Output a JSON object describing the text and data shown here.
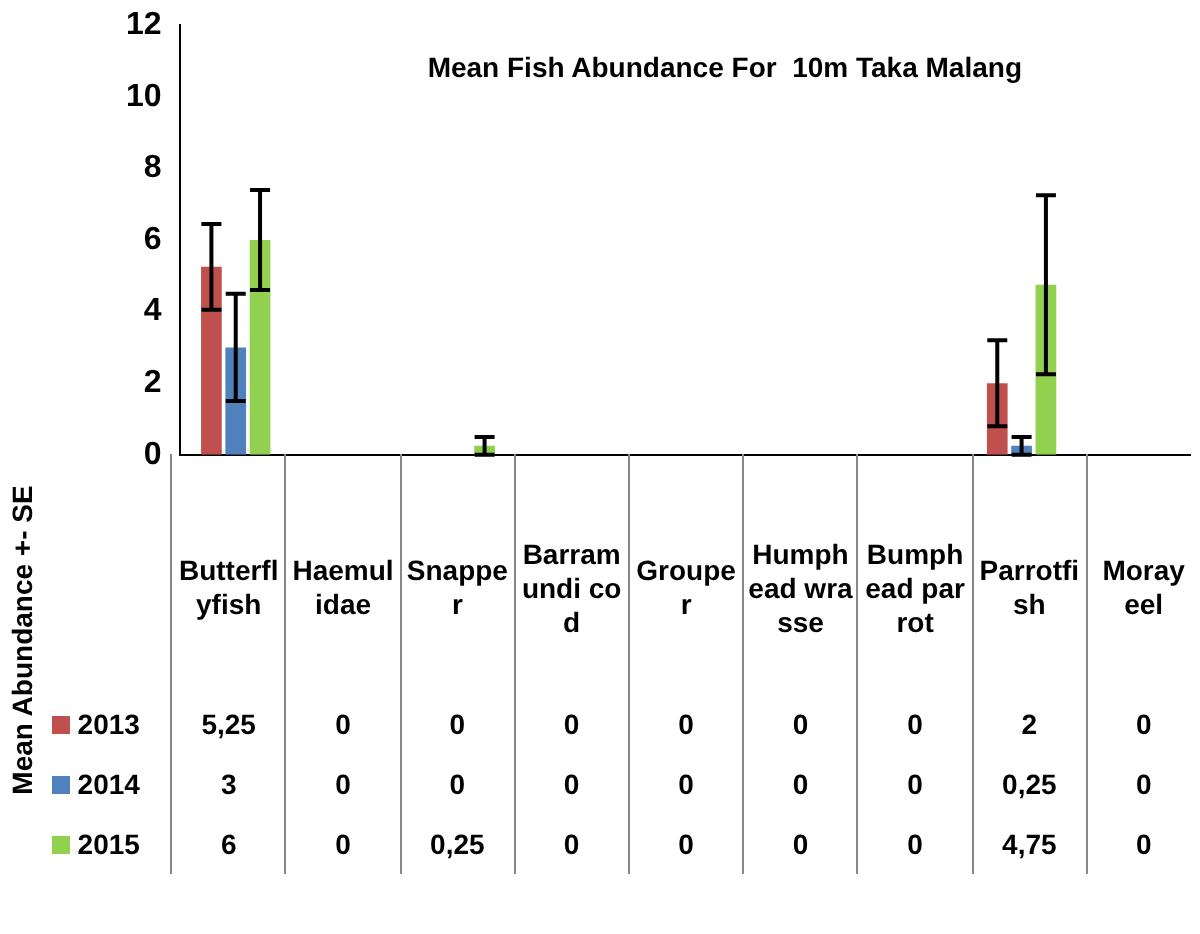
{
  "chart_data": {
    "type": "bar",
    "title": "Mean Fish Abundance For  10m Taka Malang",
    "ylabel": "Mean Abundance +- SE",
    "categories": [
      "Butterflyfish",
      "Haemulidae",
      "Snapper",
      "Barramundi cod",
      "Grouper",
      "Humphead wrasse",
      "Bumphead parrot",
      "Parrotfish",
      "Moray eel"
    ],
    "series": [
      {
        "name": "2013",
        "color": "#c0504d",
        "values": [
          5.25,
          0,
          0,
          0,
          0,
          0,
          0,
          2,
          0
        ],
        "value_labels": [
          "5,25",
          "0",
          "0",
          "0",
          "0",
          "0",
          "0",
          "2",
          "0"
        ],
        "errors": [
          1.2,
          null,
          null,
          null,
          null,
          null,
          null,
          1.2,
          null
        ]
      },
      {
        "name": "2014",
        "color": "#4f81bd",
        "values": [
          3,
          0,
          0,
          0,
          0,
          0,
          0,
          0.25,
          0
        ],
        "value_labels": [
          "3",
          "0",
          "0",
          "0",
          "0",
          "0",
          "0",
          "0,25",
          "0"
        ],
        "errors": [
          1.5,
          null,
          null,
          null,
          null,
          null,
          null,
          0.25,
          null
        ]
      },
      {
        "name": "2015",
        "color": "#92d050",
        "values": [
          6,
          0,
          0.25,
          0,
          0,
          0,
          0,
          4.75,
          0
        ],
        "value_labels": [
          "6",
          "0",
          "0,25",
          "0",
          "0",
          "0",
          "0",
          "4,75",
          "0"
        ],
        "errors": [
          1.4,
          null,
          0.25,
          null,
          null,
          null,
          null,
          2.5,
          null
        ]
      }
    ],
    "legend": "bottom left",
    "ylim": [
      0,
      12
    ],
    "yticks": [
      0,
      2,
      4,
      6,
      8,
      10,
      12
    ],
    "grid": false
  }
}
